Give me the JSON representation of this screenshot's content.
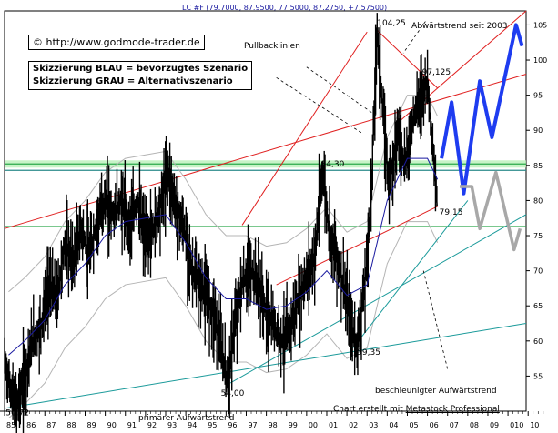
{
  "header": {
    "title": "LC #F (79.7000, 87.9500, 77.5000, 87.2750, +7.57500)",
    "url_label": "© http://www.godmode-trader.de",
    "legend_blue": "Skizzierung BLAU = bevorzugtes Szenario",
    "legend_gray": "Skizzierung GRAU = Alternativszenario",
    "credit_prefix": "Chart erstellt mit",
    "credit_link": "Metastock Professional"
  },
  "annotations": {
    "pullback": "Pullbacklinien",
    "downtrend": "Abwärtstrend seit 2003",
    "accelerated": "beschleunigter Aufwärtstrend",
    "primary": "primärer Aufwärtstrend"
  },
  "chart_data": {
    "type": "line",
    "title": "LC #F (79.7000, 87.9500, 77.5000, 87.2750, +7.57500)",
    "xlabel": "",
    "ylabel": "",
    "x_range": [
      1985,
      2010.9
    ],
    "ylim": [
      50,
      107
    ],
    "y_scale": "linear",
    "grid": false,
    "x_ticks": [
      "85",
      "86",
      "87",
      "88",
      "89",
      "90",
      "91",
      "92",
      "93",
      "94",
      "95",
      "96",
      "97",
      "98",
      "99",
      "00",
      "01",
      "02",
      "03",
      "04",
      "05",
      "06",
      "07",
      "08",
      "09",
      "010",
      "10"
    ],
    "y_ticks": [
      55,
      60,
      65,
      70,
      75,
      80,
      85,
      90,
      95,
      100,
      105
    ],
    "price_series": {
      "name": "LC #F",
      "points": [
        [
          1985.0,
          57.0
        ],
        [
          1985.3,
          53.0
        ],
        [
          1985.6,
          50.72
        ],
        [
          1986.0,
          55.0
        ],
        [
          1986.4,
          60.0
        ],
        [
          1986.8,
          62.0
        ],
        [
          1987.2,
          68.0
        ],
        [
          1987.6,
          66.0
        ],
        [
          1988.0,
          74.0
        ],
        [
          1988.4,
          71.0
        ],
        [
          1988.8,
          76.0
        ],
        [
          1989.2,
          72.0
        ],
        [
          1989.6,
          77.0
        ],
        [
          1990.0,
          80.0
        ],
        [
          1990.4,
          78.0
        ],
        [
          1990.8,
          80.0
        ],
        [
          1991.2,
          76.0
        ],
        [
          1991.6,
          80.0
        ],
        [
          1992.0,
          74.0
        ],
        [
          1992.4,
          76.0
        ],
        [
          1992.8,
          80.0
        ],
        [
          1993.1,
          84.3
        ],
        [
          1993.5,
          79.0
        ],
        [
          1993.9,
          76.0
        ],
        [
          1994.3,
          70.0
        ],
        [
          1994.7,
          68.0
        ],
        [
          1995.1,
          66.0
        ],
        [
          1995.5,
          63.0
        ],
        [
          1995.8,
          58.0
        ],
        [
          1996.1,
          54.0
        ],
        [
          1996.4,
          62.0
        ],
        [
          1996.8,
          68.0
        ],
        [
          1997.2,
          70.0
        ],
        [
          1997.6,
          68.0
        ],
        [
          1998.0,
          64.0
        ],
        [
          1998.4,
          62.0
        ],
        [
          1998.8,
          60.0
        ],
        [
          1999.2,
          62.0
        ],
        [
          1999.6,
          66.0
        ],
        [
          2000.0,
          69.0
        ],
        [
          2000.4,
          72.0
        ],
        [
          2000.8,
          84.3
        ],
        [
          2001.1,
          76.0
        ],
        [
          2001.5,
          72.0
        ],
        [
          2001.9,
          67.0
        ],
        [
          2002.2,
          62.0
        ],
        [
          2002.5,
          59.35
        ],
        [
          2002.9,
          68.0
        ],
        [
          2003.2,
          80.0
        ],
        [
          2003.5,
          104.25
        ],
        [
          2003.8,
          92.0
        ],
        [
          2004.1,
          82.0
        ],
        [
          2004.5,
          90.0
        ],
        [
          2004.9,
          85.0
        ],
        [
          2005.3,
          92.0
        ],
        [
          2005.7,
          95.0
        ],
        [
          2006.0,
          97.125
        ],
        [
          2006.3,
          86.0
        ],
        [
          2006.5,
          79.15
        ]
      ]
    },
    "moving_average": {
      "name": "",
      "points": [
        [
          1985.2,
          58.0
        ],
        [
          1986.0,
          60.0
        ],
        [
          1987.0,
          63.0
        ],
        [
          1988.0,
          68.0
        ],
        [
          1989.0,
          71.0
        ],
        [
          1990.0,
          75.0
        ],
        [
          1991.0,
          77.0
        ],
        [
          1992.0,
          77.5
        ],
        [
          1993.0,
          78.0
        ],
        [
          1994.0,
          74.0
        ],
        [
          1995.0,
          69.0
        ],
        [
          1996.0,
          66.0
        ],
        [
          1997.0,
          66.0
        ],
        [
          1998.0,
          64.5
        ],
        [
          1999.0,
          65.0
        ],
        [
          2000.0,
          67.0
        ],
        [
          2001.0,
          70.0
        ],
        [
          2002.0,
          66.5
        ],
        [
          2003.0,
          68.0
        ],
        [
          2004.0,
          80.0
        ],
        [
          2005.0,
          86.0
        ],
        [
          2006.0,
          86.0
        ],
        [
          2006.5,
          83.0
        ]
      ]
    },
    "annotated_levels": [
      {
        "label": "50,72",
        "value": 50.72
      },
      {
        "label": "54,00",
        "value": 54.0
      },
      {
        "label": "84,30",
        "value": 84.3
      },
      {
        "label": "59,35",
        "value": 59.35
      },
      {
        "label": "104,25",
        "value": 104.25
      },
      {
        "label": "97,125",
        "value": 97.125
      },
      {
        "label": "79,15",
        "value": 79.15
      }
    ],
    "horizontal_lines": [
      {
        "value": 85.2,
        "color": "#2aa84a"
      },
      {
        "value": 84.3,
        "color": "#2a8a8a"
      },
      {
        "value": 76.3,
        "color": "#2aa84a"
      }
    ],
    "trend_lines": [
      {
        "name": "Pullbacklinien",
        "color": "#e02020",
        "from": [
          1985.0,
          76.0
        ],
        "to": [
          2010.9,
          98.0
        ]
      },
      {
        "name": "Abwärtstrend seit 2003",
        "color": "#e02020",
        "from": [
          2003.5,
          104.25
        ],
        "to": [
          2006.5,
          96.0
        ]
      },
      {
        "name": "",
        "color": "#e02020",
        "from": [
          1996.8,
          76.5
        ],
        "to": [
          2003.0,
          104.0
        ]
      },
      {
        "name": "",
        "color": "#e02020",
        "from": [
          2004.5,
          91.0
        ],
        "to": [
          2010.9,
          107.0
        ]
      },
      {
        "name": "",
        "color": "#e02020",
        "from": [
          1998.5,
          68.0
        ],
        "to": [
          2006.5,
          79.15
        ]
      },
      {
        "name": "beschleunigter Aufwärtstrend",
        "color": "#1a9a9a",
        "from": [
          1996.2,
          54.0
        ],
        "to": [
          2010.9,
          78.0
        ]
      },
      {
        "name": "",
        "color": "#1a9a9a",
        "from": [
          2002.3,
          59.0
        ],
        "to": [
          2008.0,
          80.0
        ]
      },
      {
        "name": "primärer Aufwärtstrend",
        "color": "#1a9a9a",
        "from": [
          1985.0,
          50.4
        ],
        "to": [
          2010.9,
          62.5
        ]
      }
    ],
    "scenarios": [
      {
        "name": "Skizzierung BLAU = bevorzugtes Szenario",
        "color": "#1e3cf0",
        "points": [
          [
            2006.7,
            86.0
          ],
          [
            2007.2,
            94.0
          ],
          [
            2007.8,
            81.0
          ],
          [
            2008.6,
            97.0
          ],
          [
            2009.2,
            89.0
          ],
          [
            2010.4,
            105.0
          ],
          [
            2010.7,
            102.0
          ]
        ]
      },
      {
        "name": "Skizzierung GRAU = Alternativszenario",
        "color": "#a8a8a8",
        "points": [
          [
            2007.6,
            82.0
          ],
          [
            2008.2,
            82.0
          ],
          [
            2008.6,
            76.0
          ],
          [
            2009.4,
            84.0
          ],
          [
            2010.3,
            73.0
          ],
          [
            2010.6,
            76.0
          ]
        ]
      }
    ]
  }
}
